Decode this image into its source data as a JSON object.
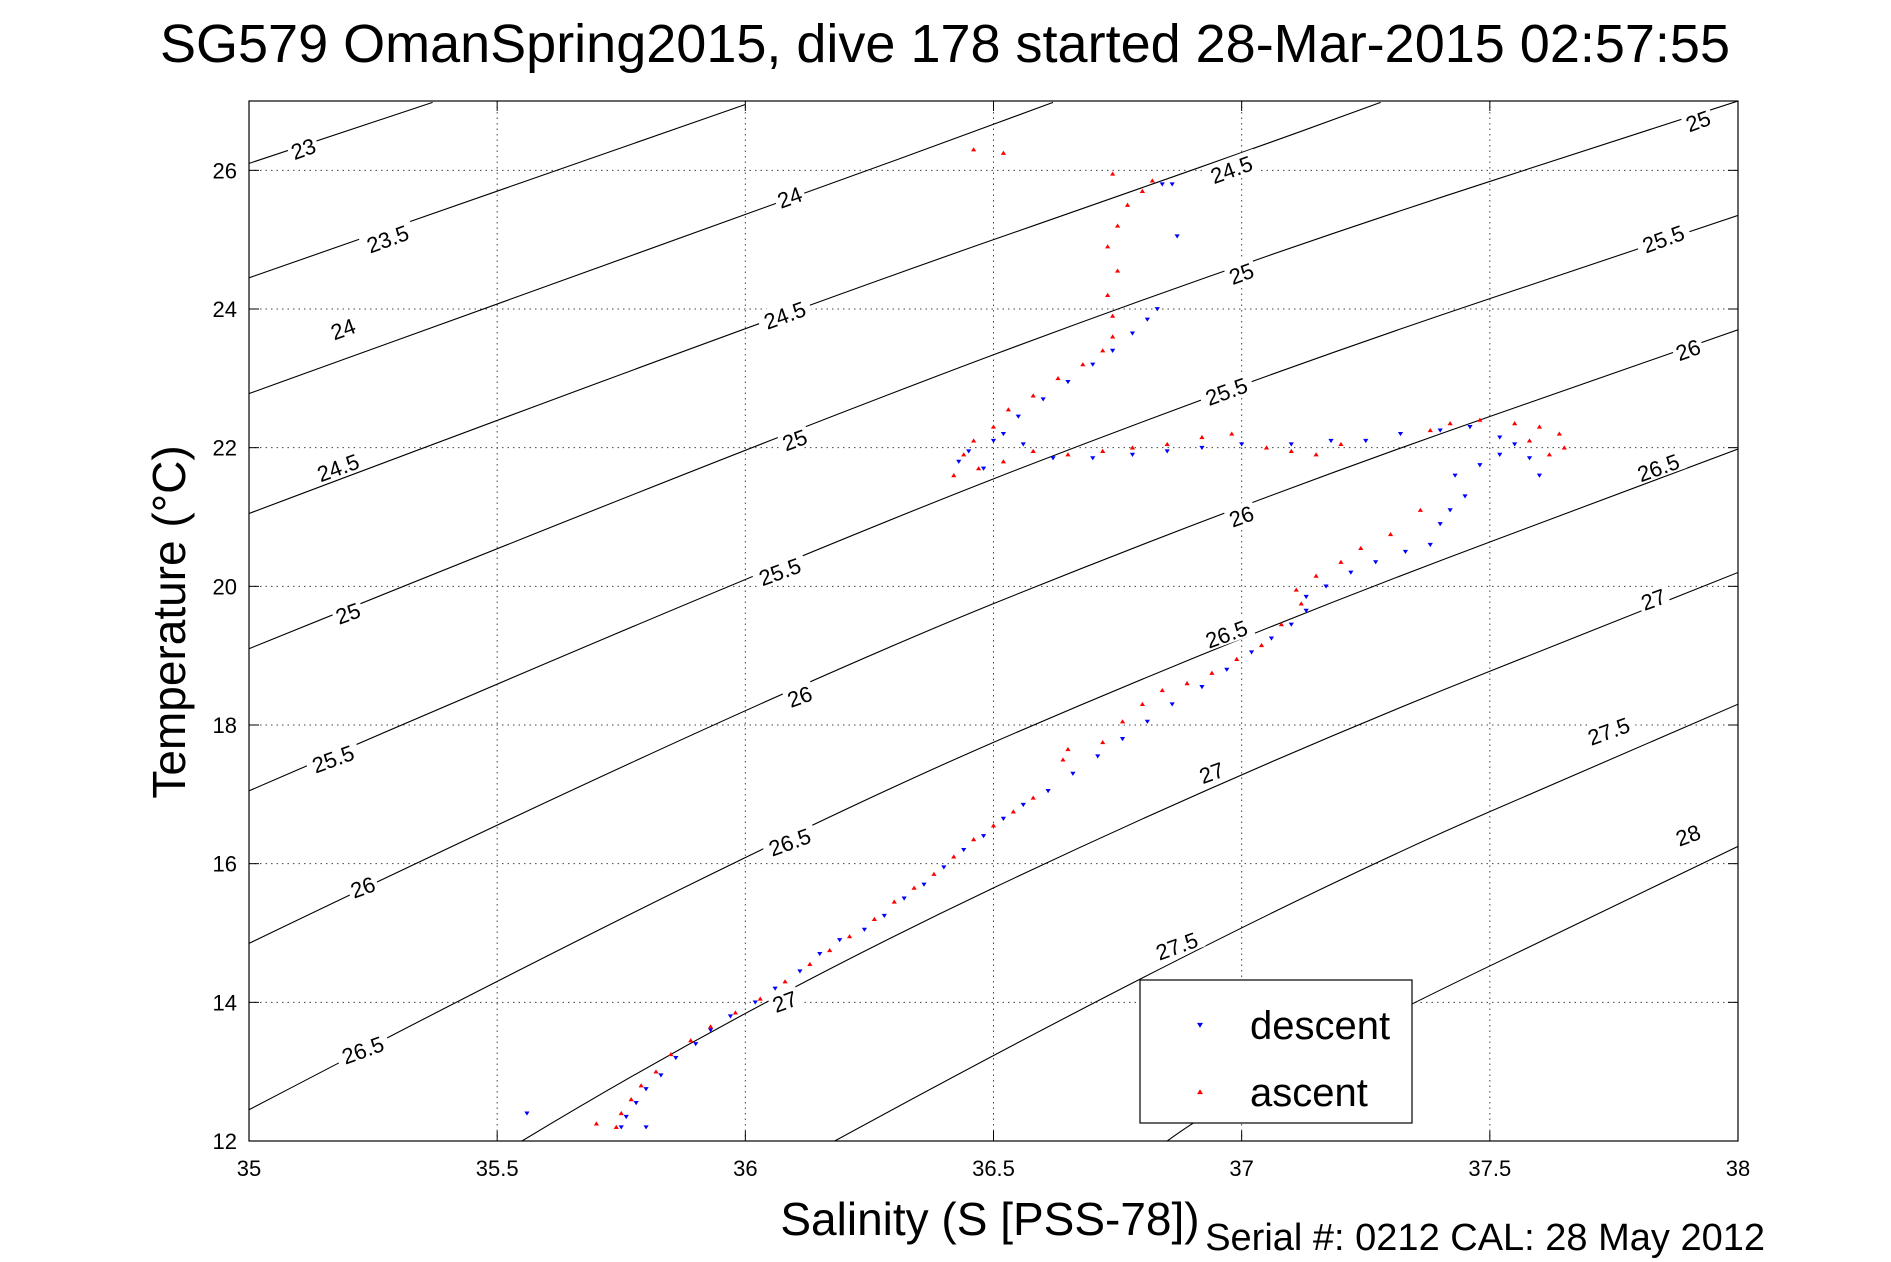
{
  "chart_data": {
    "type": "scatter",
    "title": "SG579 OmanSpring2015, dive 178 started 28-Mar-2015 02:57:55",
    "xlabel": "Salinity (S [PSS-78])",
    "ylabel": "Temperature (°C)",
    "xlim": [
      35,
      38
    ],
    "ylim": [
      12,
      27
    ],
    "xticks": [
      35,
      35.5,
      36,
      36.5,
      37,
      37.5,
      38
    ],
    "xtick_labels": [
      "35",
      "35.5",
      "36",
      "36.5",
      "37",
      "37.5",
      "38"
    ],
    "yticks": [
      12,
      14,
      16,
      18,
      20,
      22,
      24,
      26
    ],
    "ytick_labels": [
      "12",
      "14",
      "16",
      "18",
      "20",
      "22",
      "24",
      "26"
    ],
    "grid": true,
    "legend_position": "bottom-right",
    "footer": "Serial #: 0212  CAL: 28 May 2012",
    "colors": {
      "descent": "#0000ff",
      "ascent": "#ff0000"
    },
    "density_contours": [
      {
        "label": "23",
        "points": [
          [
            35.0,
            26.1
          ],
          [
            35.37,
            26.98
          ]
        ]
      },
      {
        "label": "23.5",
        "points": [
          [
            35.0,
            24.45
          ],
          [
            36.0,
            26.95
          ]
        ]
      },
      {
        "label": "24",
        "points": [
          [
            35.0,
            22.78
          ],
          [
            36.0,
            25.35
          ],
          [
            36.62,
            26.98
          ]
        ]
      },
      {
        "label": "24.5",
        "points": [
          [
            35.0,
            21.05
          ],
          [
            36.0,
            23.75
          ],
          [
            37.0,
            26.25
          ],
          [
            37.28,
            26.98
          ]
        ]
      },
      {
        "label": "25",
        "points": [
          [
            35.0,
            19.1
          ],
          [
            36.0,
            22.0
          ],
          [
            37.0,
            24.68
          ],
          [
            38.0,
            27.0
          ]
        ]
      },
      {
        "label": "25.5",
        "points": [
          [
            35.0,
            17.05
          ],
          [
            36.0,
            20.15
          ],
          [
            37.0,
            22.95
          ],
          [
            38.0,
            25.35
          ]
        ]
      },
      {
        "label": "26",
        "points": [
          [
            35.0,
            14.85
          ],
          [
            36.0,
            18.3
          ],
          [
            37.0,
            21.2
          ],
          [
            38.0,
            23.7
          ]
        ]
      },
      {
        "label": "26.5",
        "points": [
          [
            35.0,
            12.45
          ],
          [
            36.0,
            16.2
          ],
          [
            37.0,
            19.3
          ],
          [
            38.0,
            21.98
          ]
        ]
      },
      {
        "label": "27",
        "points": [
          [
            35.55,
            12.0
          ],
          [
            36.0,
            13.95
          ],
          [
            37.0,
            17.35
          ],
          [
            38.0,
            20.2
          ]
        ]
      },
      {
        "label": "27.5",
        "points": [
          [
            36.18,
            12.0
          ],
          [
            37.0,
            15.2
          ],
          [
            38.0,
            18.3
          ]
        ]
      },
      {
        "label": "28",
        "points": [
          [
            36.85,
            12.0
          ],
          [
            37.0,
            12.8
          ],
          [
            38.0,
            16.25
          ]
        ]
      }
    ],
    "contour_labels": [
      {
        "text": "23",
        "x": 35.11,
        "y": 26.3
      },
      {
        "text": "23.5",
        "x": 35.28,
        "y": 25.0
      },
      {
        "text": "24",
        "x": 36.09,
        "y": 25.6
      },
      {
        "text": "24.5",
        "x": 36.98,
        "y": 26.0
      },
      {
        "text": "24",
        "x": 35.19,
        "y": 23.7
      },
      {
        "text": "24.5",
        "x": 36.08,
        "y": 23.9
      },
      {
        "text": "25",
        "x": 37.0,
        "y": 24.5
      },
      {
        "text": "25",
        "x": 37.92,
        "y": 26.7
      },
      {
        "text": "24.5",
        "x": 35.18,
        "y": 21.7
      },
      {
        "text": "25",
        "x": 36.1,
        "y": 22.1
      },
      {
        "text": "25.5",
        "x": 36.97,
        "y": 22.8
      },
      {
        "text": "25.5",
        "x": 37.85,
        "y": 25.0
      },
      {
        "text": "25",
        "x": 35.2,
        "y": 19.6
      },
      {
        "text": "25.5",
        "x": 36.07,
        "y": 20.2
      },
      {
        "text": "26",
        "x": 37.0,
        "y": 21.0
      },
      {
        "text": "26",
        "x": 37.9,
        "y": 23.4
      },
      {
        "text": "25.5",
        "x": 35.17,
        "y": 17.5
      },
      {
        "text": "26",
        "x": 36.11,
        "y": 18.4
      },
      {
        "text": "26.5",
        "x": 36.97,
        "y": 19.3
      },
      {
        "text": "26.5",
        "x": 37.84,
        "y": 21.7
      },
      {
        "text": "26",
        "x": 35.23,
        "y": 15.65
      },
      {
        "text": "26.5",
        "x": 36.09,
        "y": 16.3
      },
      {
        "text": "27",
        "x": 36.94,
        "y": 17.3
      },
      {
        "text": "27",
        "x": 37.83,
        "y": 19.8
      },
      {
        "text": "26.5",
        "x": 35.23,
        "y": 13.3
      },
      {
        "text": "27",
        "x": 36.08,
        "y": 14.0
      },
      {
        "text": "27.5",
        "x": 36.87,
        "y": 14.8
      },
      {
        "text": "27.5",
        "x": 37.74,
        "y": 17.9
      },
      {
        "text": "28",
        "x": 37.9,
        "y": 16.4
      }
    ],
    "series": [
      {
        "name": "descent",
        "marker": "triangle-down",
        "points": [
          [
            35.56,
            12.4
          ],
          [
            35.75,
            12.2
          ],
          [
            35.8,
            12.2
          ],
          [
            35.76,
            12.35
          ],
          [
            35.78,
            12.55
          ],
          [
            35.8,
            12.75
          ],
          [
            35.83,
            12.95
          ],
          [
            35.86,
            13.2
          ],
          [
            35.9,
            13.4
          ],
          [
            35.93,
            13.6
          ],
          [
            35.97,
            13.8
          ],
          [
            36.02,
            14.0
          ],
          [
            36.06,
            14.2
          ],
          [
            36.11,
            14.45
          ],
          [
            36.15,
            14.7
          ],
          [
            36.19,
            14.9
          ],
          [
            36.24,
            15.05
          ],
          [
            36.28,
            15.25
          ],
          [
            36.32,
            15.5
          ],
          [
            36.36,
            15.7
          ],
          [
            36.4,
            15.95
          ],
          [
            36.44,
            16.2
          ],
          [
            36.48,
            16.4
          ],
          [
            36.52,
            16.65
          ],
          [
            36.56,
            16.85
          ],
          [
            36.61,
            17.05
          ],
          [
            36.66,
            17.3
          ],
          [
            36.71,
            17.55
          ],
          [
            36.76,
            17.8
          ],
          [
            36.81,
            18.05
          ],
          [
            36.86,
            18.3
          ],
          [
            36.92,
            18.55
          ],
          [
            36.97,
            18.8
          ],
          [
            37.02,
            19.05
          ],
          [
            37.06,
            19.25
          ],
          [
            37.1,
            19.45
          ],
          [
            37.13,
            19.65
          ],
          [
            37.13,
            19.85
          ],
          [
            37.17,
            20.0
          ],
          [
            37.22,
            20.2
          ],
          [
            37.27,
            20.35
          ],
          [
            37.33,
            20.5
          ],
          [
            37.38,
            20.6
          ],
          [
            37.4,
            20.9
          ],
          [
            37.42,
            21.1
          ],
          [
            37.45,
            21.3
          ],
          [
            37.43,
            21.6
          ],
          [
            37.48,
            21.75
          ],
          [
            37.52,
            21.9
          ],
          [
            37.55,
            22.05
          ],
          [
            37.58,
            21.85
          ],
          [
            37.6,
            21.6
          ],
          [
            37.52,
            22.15
          ],
          [
            37.46,
            22.3
          ],
          [
            37.4,
            22.25
          ],
          [
            37.32,
            22.2
          ],
          [
            37.25,
            22.1
          ],
          [
            37.18,
            22.1
          ],
          [
            37.1,
            22.05
          ],
          [
            37.0,
            22.05
          ],
          [
            36.92,
            22.0
          ],
          [
            36.85,
            21.95
          ],
          [
            36.78,
            21.9
          ],
          [
            36.7,
            21.85
          ],
          [
            36.62,
            21.85
          ],
          [
            36.56,
            22.05
          ],
          [
            36.5,
            22.1
          ],
          [
            36.45,
            21.95
          ],
          [
            36.43,
            21.8
          ],
          [
            36.48,
            21.7
          ],
          [
            36.52,
            22.2
          ],
          [
            36.55,
            22.45
          ],
          [
            36.6,
            22.7
          ],
          [
            36.65,
            22.95
          ],
          [
            36.7,
            23.2
          ],
          [
            36.74,
            23.4
          ],
          [
            36.78,
            23.65
          ],
          [
            36.81,
            23.85
          ],
          [
            36.83,
            24.0
          ],
          [
            36.86,
            25.8
          ],
          [
            36.84,
            25.8
          ],
          [
            36.87,
            25.05
          ]
        ]
      },
      {
        "name": "ascent",
        "marker": "triangle-up",
        "points": [
          [
            35.7,
            12.25
          ],
          [
            35.74,
            12.2
          ],
          [
            35.75,
            12.4
          ],
          [
            35.77,
            12.6
          ],
          [
            35.79,
            12.8
          ],
          [
            35.82,
            13.0
          ],
          [
            35.85,
            13.25
          ],
          [
            35.89,
            13.45
          ],
          [
            35.93,
            13.65
          ],
          [
            35.98,
            13.85
          ],
          [
            36.03,
            14.05
          ],
          [
            36.08,
            14.3
          ],
          [
            36.13,
            14.55
          ],
          [
            36.17,
            14.75
          ],
          [
            36.21,
            14.95
          ],
          [
            36.26,
            15.2
          ],
          [
            36.3,
            15.45
          ],
          [
            36.34,
            15.65
          ],
          [
            36.38,
            15.85
          ],
          [
            36.42,
            16.1
          ],
          [
            36.46,
            16.35
          ],
          [
            36.5,
            16.55
          ],
          [
            36.54,
            16.75
          ],
          [
            36.58,
            16.95
          ],
          [
            36.65,
            17.65
          ],
          [
            36.64,
            17.5
          ],
          [
            36.72,
            17.75
          ],
          [
            36.76,
            18.05
          ],
          [
            36.8,
            18.3
          ],
          [
            36.84,
            18.5
          ],
          [
            36.89,
            18.6
          ],
          [
            36.94,
            18.75
          ],
          [
            36.99,
            18.95
          ],
          [
            37.04,
            19.15
          ],
          [
            37.08,
            19.45
          ],
          [
            37.12,
            19.75
          ],
          [
            37.11,
            19.95
          ],
          [
            37.15,
            20.15
          ],
          [
            37.2,
            20.35
          ],
          [
            37.24,
            20.55
          ],
          [
            37.3,
            20.75
          ],
          [
            37.36,
            21.1
          ],
          [
            37.38,
            22.25
          ],
          [
            37.42,
            22.35
          ],
          [
            37.48,
            22.4
          ],
          [
            37.55,
            22.35
          ],
          [
            37.6,
            22.3
          ],
          [
            37.64,
            22.2
          ],
          [
            37.65,
            22.0
          ],
          [
            37.62,
            21.9
          ],
          [
            37.58,
            22.1
          ],
          [
            37.2,
            22.05
          ],
          [
            37.15,
            21.9
          ],
          [
            37.1,
            21.95
          ],
          [
            37.05,
            22.0
          ],
          [
            36.98,
            22.2
          ],
          [
            36.92,
            22.15
          ],
          [
            36.85,
            22.05
          ],
          [
            36.78,
            22.0
          ],
          [
            36.72,
            21.95
          ],
          [
            36.65,
            21.9
          ],
          [
            36.58,
            21.95
          ],
          [
            36.52,
            21.8
          ],
          [
            36.47,
            21.7
          ],
          [
            36.42,
            21.6
          ],
          [
            36.44,
            21.9
          ],
          [
            36.46,
            22.1
          ],
          [
            36.5,
            22.3
          ],
          [
            36.53,
            22.55
          ],
          [
            36.58,
            22.75
          ],
          [
            36.63,
            23.0
          ],
          [
            36.68,
            23.2
          ],
          [
            36.72,
            23.4
          ],
          [
            36.74,
            23.6
          ],
          [
            36.74,
            23.9
          ],
          [
            36.73,
            24.2
          ],
          [
            36.75,
            24.55
          ],
          [
            36.73,
            24.9
          ],
          [
            36.75,
            25.2
          ],
          [
            36.77,
            25.5
          ],
          [
            36.8,
            25.7
          ],
          [
            36.82,
            25.85
          ],
          [
            36.74,
            25.95
          ],
          [
            36.46,
            26.3
          ],
          [
            36.52,
            26.25
          ]
        ]
      }
    ]
  }
}
